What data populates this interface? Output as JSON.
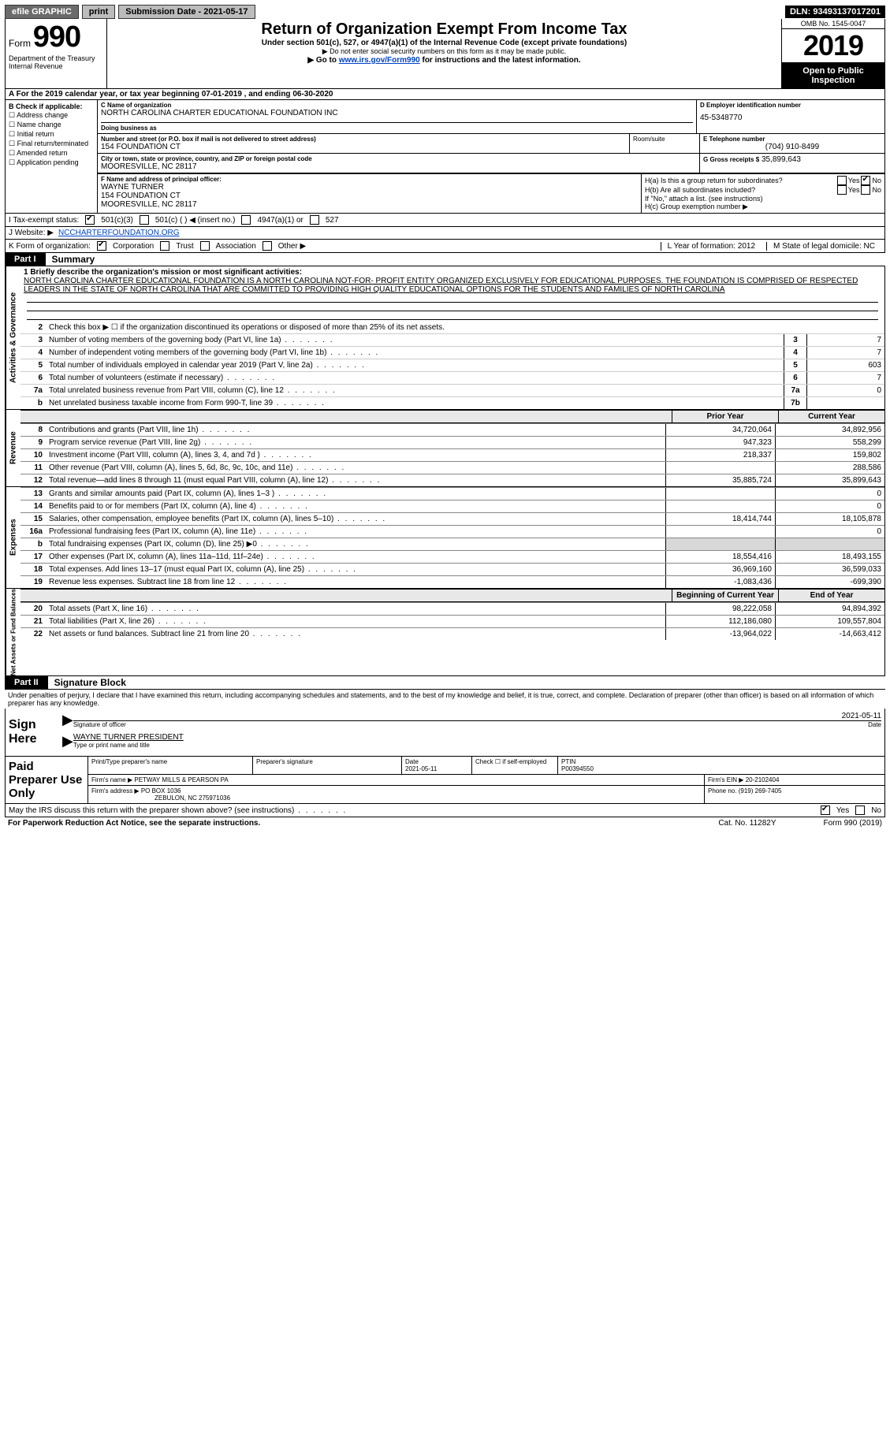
{
  "topbar": {
    "efile": "efile GRAPHIC",
    "print": "print",
    "sub_date_lbl": "Submission Date - 2021-05-17",
    "dln": "DLN: 93493137017201"
  },
  "header": {
    "form_word": "Form",
    "form_990": "990",
    "dept1": "Department of the Treasury",
    "dept2": "Internal Revenue",
    "title": "Return of Organization Exempt From Income Tax",
    "sub1": "Under section 501(c), 527, or 4947(a)(1) of the Internal Revenue Code (except private foundations)",
    "sub2": "▶ Do not enter social security numbers on this form as it may be made public.",
    "sub3a": "▶ Go to ",
    "sub3link": "www.irs.gov/Form990",
    "sub3b": " for instructions and the latest information.",
    "omb": "OMB No. 1545-0047",
    "year": "2019",
    "open_pub": "Open to Public Inspection"
  },
  "line_a": "A For the 2019 calendar year, or tax year beginning 07-01-2019   , and ending 06-30-2020",
  "box_b": {
    "label": "B Check if applicable:",
    "opts": [
      "Address change",
      "Name change",
      "Initial return",
      "Final return/terminated",
      "Amended return",
      "Application pending"
    ]
  },
  "box_c": {
    "name_lbl": "C Name of organization",
    "name": "NORTH CAROLINA CHARTER EDUCATIONAL FOUNDATION INC",
    "dba_lbl": "Doing business as",
    "addr_lbl": "Number and street (or P.O. box if mail is not delivered to street address)",
    "addr": "154 FOUNDATION CT",
    "room_lbl": "Room/suite",
    "city_lbl": "City or town, state or province, country, and ZIP or foreign postal code",
    "city": "MOORESVILLE, NC  28117"
  },
  "box_d": {
    "lbl": "D Employer identification number",
    "val": "45-5348770"
  },
  "box_e": {
    "lbl": "E Telephone number",
    "val": "(704) 910-8499"
  },
  "box_g": {
    "lbl": "G Gross receipts $",
    "val": "35,899,643"
  },
  "box_f": {
    "lbl": "F  Name and address of principal officer:",
    "l1": "WAYNE TURNER",
    "l2": "154 FOUNDATION CT",
    "l3": "MOORESVILLE, NC  28117"
  },
  "box_h": {
    "a": "H(a)  Is this a group return for subordinates?",
    "b": "H(b)  Are all subordinates included?",
    "note": "If \"No,\" attach a list. (see instructions)",
    "c": "H(c)  Group exemption number ▶",
    "yes": "Yes",
    "no": "No"
  },
  "row_i": {
    "lbl": "I   Tax-exempt status:",
    "o1": "501(c)(3)",
    "o2": "501(c) (  ) ◀ (insert no.)",
    "o3": "4947(a)(1) or",
    "o4": "527"
  },
  "row_j": {
    "lbl": "J   Website: ▶",
    "val": "NCCHARTERFOUNDATION.ORG"
  },
  "row_k": {
    "lbl": "K Form of organization:",
    "o1": "Corporation",
    "o2": "Trust",
    "o3": "Association",
    "o4": "Other ▶"
  },
  "row_lm": {
    "l": "L Year of formation: 2012",
    "m": "M State of legal domicile: NC"
  },
  "part1": {
    "label": "Part I",
    "title": "Summary"
  },
  "mission": {
    "q": "1   Briefly describe the organization's mission or most significant activities:",
    "text": "NORTH CAROLINA CHARTER EDUCATIONAL FOUNDATION IS A NORTH CAROLINA NOT-FOR- PROFIT ENTITY ORGANIZED EXCLUSIVELY FOR EDUCATIONAL PURPOSES. THE FOUNDATION IS COMPRISED OF RESPECTED LEADERS IN THE STATE OF NORTH CAROLINA THAT ARE COMMITTED TO PROVIDING HIGH QUALITY EDUCATIONAL OPTIONS FOR THE STUDENTS AND FAMILIES OF NORTH CAROLINA"
  },
  "gov_lines": {
    "l2": "Check this box ▶ ☐  if the organization discontinued its operations or disposed of more than 25% of its net assets.",
    "rows": [
      {
        "n": "3",
        "t": "Number of voting members of the governing body (Part VI, line 1a)",
        "box": "3",
        "v": "7"
      },
      {
        "n": "4",
        "t": "Number of independent voting members of the governing body (Part VI, line 1b)",
        "box": "4",
        "v": "7"
      },
      {
        "n": "5",
        "t": "Total number of individuals employed in calendar year 2019 (Part V, line 2a)",
        "box": "5",
        "v": "603"
      },
      {
        "n": "6",
        "t": "Total number of volunteers (estimate if necessary)",
        "box": "6",
        "v": "7"
      },
      {
        "n": "7a",
        "t": "Total unrelated business revenue from Part VIII, column (C), line 12",
        "box": "7a",
        "v": "0"
      },
      {
        "n": "b",
        "t": "Net unrelated business taxable income from Form 990-T, line 39",
        "box": "7b",
        "v": ""
      }
    ]
  },
  "fin_hdr": {
    "prior": "Prior Year",
    "current": "Current Year"
  },
  "revenue": [
    {
      "n": "8",
      "t": "Contributions and grants (Part VIII, line 1h)",
      "p": "34,720,064",
      "c": "34,892,956"
    },
    {
      "n": "9",
      "t": "Program service revenue (Part VIII, line 2g)",
      "p": "947,323",
      "c": "558,299"
    },
    {
      "n": "10",
      "t": "Investment income (Part VIII, column (A), lines 3, 4, and 7d )",
      "p": "218,337",
      "c": "159,802"
    },
    {
      "n": "11",
      "t": "Other revenue (Part VIII, column (A), lines 5, 6d, 8c, 9c, 10c, and 11e)",
      "p": "",
      "c": "288,586"
    },
    {
      "n": "12",
      "t": "Total revenue—add lines 8 through 11 (must equal Part VIII, column (A), line 12)",
      "p": "35,885,724",
      "c": "35,899,643"
    }
  ],
  "expenses": [
    {
      "n": "13",
      "t": "Grants and similar amounts paid (Part IX, column (A), lines 1–3 )",
      "p": "",
      "c": "0"
    },
    {
      "n": "14",
      "t": "Benefits paid to or for members (Part IX, column (A), line 4)",
      "p": "",
      "c": "0"
    },
    {
      "n": "15",
      "t": "Salaries, other compensation, employee benefits (Part IX, column (A), lines 5–10)",
      "p": "18,414,744",
      "c": "18,105,878"
    },
    {
      "n": "16a",
      "t": "Professional fundraising fees (Part IX, column (A), line 11e)",
      "p": "",
      "c": "0"
    },
    {
      "n": "b",
      "t": "Total fundraising expenses (Part IX, column (D), line 25) ▶0",
      "p": "gray",
      "c": "gray"
    },
    {
      "n": "17",
      "t": "Other expenses (Part IX, column (A), lines 11a–11d, 11f–24e)",
      "p": "18,554,416",
      "c": "18,493,155"
    },
    {
      "n": "18",
      "t": "Total expenses. Add lines 13–17 (must equal Part IX, column (A), line 25)",
      "p": "36,969,160",
      "c": "36,599,033"
    },
    {
      "n": "19",
      "t": "Revenue less expenses. Subtract line 18 from line 12",
      "p": "-1,083,436",
      "c": "-699,390"
    }
  ],
  "bal_hdr": {
    "b": "Beginning of Current Year",
    "e": "End of Year"
  },
  "balances": [
    {
      "n": "20",
      "t": "Total assets (Part X, line 16)",
      "p": "98,222,058",
      "c": "94,894,392"
    },
    {
      "n": "21",
      "t": "Total liabilities (Part X, line 26)",
      "p": "112,186,080",
      "c": "109,557,804"
    },
    {
      "n": "22",
      "t": "Net assets or fund balances. Subtract line 21 from line 20",
      "p": "-13,964,022",
      "c": "-14,663,412"
    }
  ],
  "part2": {
    "label": "Part II",
    "title": "Signature Block"
  },
  "sig": {
    "penalty": "Under penalties of perjury, I declare that I have examined this return, including accompanying schedules and statements, and to the best of my knowledge and belief, it is true, correct, and complete. Declaration of preparer (other than officer) is based on all information of which preparer has any knowledge.",
    "sign_here": "Sign Here",
    "sig_lbl": "Signature of officer",
    "date_lbl": "Date",
    "date": "2021-05-11",
    "name": "WAYNE TURNER  PRESIDENT",
    "name_lbl": "Type or print name and title"
  },
  "paid": {
    "label": "Paid Preparer Use Only",
    "h1": "Print/Type preparer's name",
    "h2": "Preparer's signature",
    "h3": "Date",
    "h3v": "2021-05-11",
    "h4": "Check ☐  if self-employed",
    "h5": "PTIN",
    "h5v": "P00394550",
    "firm_lbl": "Firm's name   ▶",
    "firm": "PETWAY MILLS & PEARSON PA",
    "ein_lbl": "Firm's EIN ▶",
    "ein": "20-2102404",
    "addr_lbl": "Firm's address ▶",
    "addr1": "PO BOX 1036",
    "addr2": "ZEBULON, NC  275971036",
    "phone_lbl": "Phone no.",
    "phone": "(919) 269-7405"
  },
  "discuss": "May the IRS discuss this return with the preparer shown above? (see instructions)",
  "footer": {
    "l": "For Paperwork Reduction Act Notice, see the separate instructions.",
    "m": "Cat. No. 11282Y",
    "r": "Form 990 (2019)"
  },
  "sidebars": {
    "ag": "Activities & Governance",
    "rev": "Revenue",
    "exp": "Expenses",
    "na": "Net Assets or Fund Balances"
  }
}
